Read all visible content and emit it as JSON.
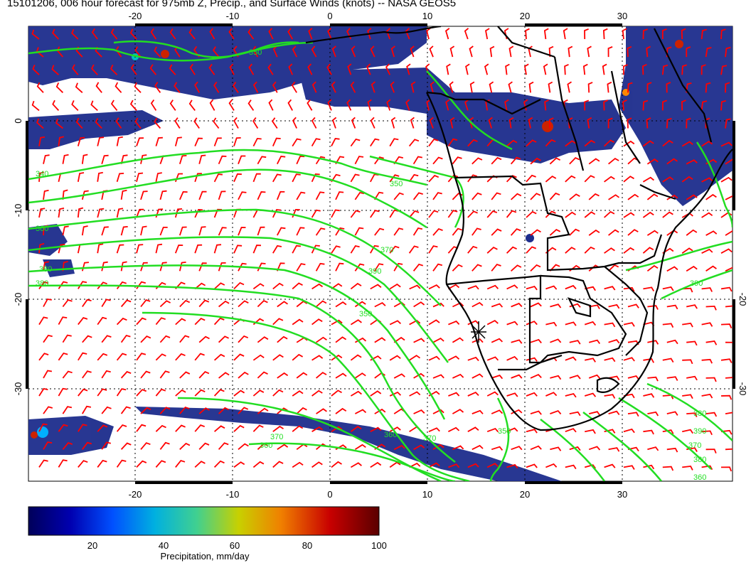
{
  "title": "15101206, 006 hour forecast for 975mb Z, Precip., and Surface Winds (knots) -- NASA GEOS5",
  "axes": {
    "lon_range": [
      -30,
      40
    ],
    "lat_range": [
      -40,
      10
    ],
    "lon_ticks": [
      "-20",
      "-10",
      "0",
      "10",
      "20",
      "30"
    ],
    "lat_ticks": [
      "0",
      "-10",
      "-20",
      "-30"
    ],
    "lon_values": [
      -20,
      -10,
      0,
      10,
      20,
      30
    ],
    "lat_values": [
      0,
      -10,
      -20,
      -30
    ],
    "grid": "dotted"
  },
  "contour_labels": [
    "340",
    "350",
    "360",
    "370",
    "380",
    "390",
    "350",
    "360",
    "370",
    "380",
    "390",
    "380",
    "370",
    "360",
    "350",
    "390",
    "380",
    "360",
    "370",
    "350"
  ],
  "colorbar": {
    "label": "Precipitation, mm/day",
    "ticks": [
      "20",
      "40",
      "60",
      "80",
      "100"
    ],
    "tick_values": [
      20,
      40,
      60,
      80,
      100
    ],
    "range": [
      0,
      100
    ],
    "colors": [
      "#000066",
      "#0000cc",
      "#0066ff",
      "#00cccc",
      "#66cc33",
      "#cccc00",
      "#ff9900",
      "#cc0000",
      "#660000"
    ]
  },
  "colors": {
    "contour": "#22dd22",
    "wind_barb": "#ff0000",
    "land_border": "#000000",
    "precip_low": "#1a2a8a"
  },
  "legend": {
    "wind_barbs": "Surface Winds (knots)",
    "contours": "975mb Z",
    "fill": "Precip."
  }
}
